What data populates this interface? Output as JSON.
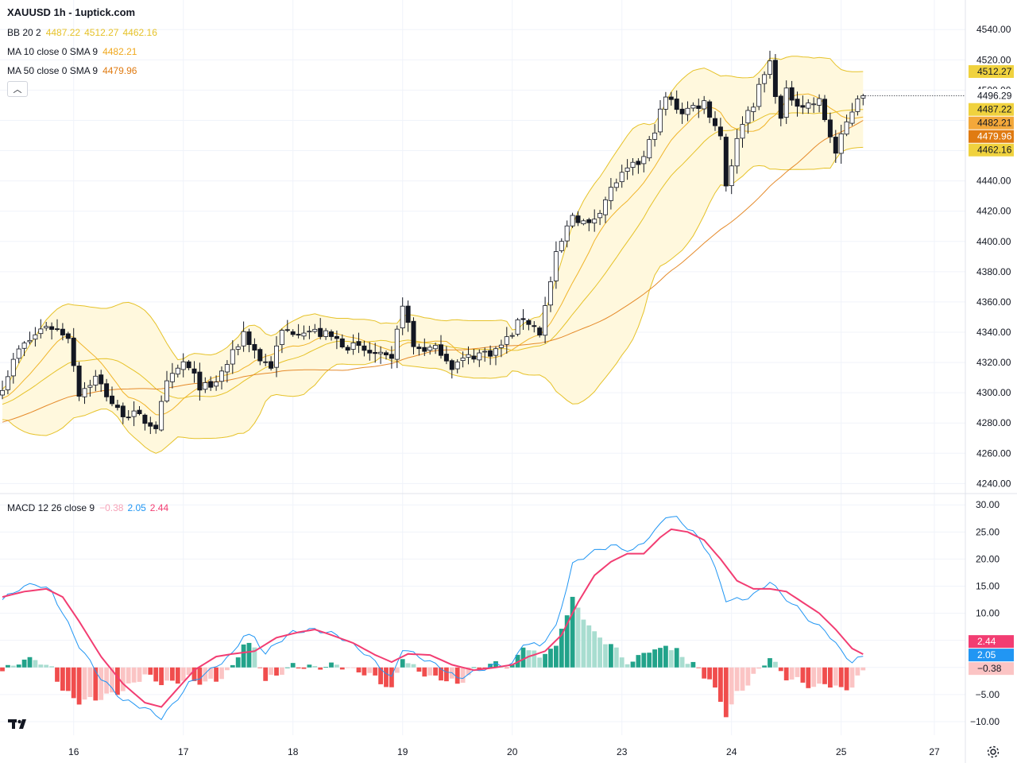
{
  "header": {
    "title": "XAUUSD 1h - 1uptick.com",
    "bb": {
      "name": "BB 20 2",
      "basis": "4487.22",
      "upper": "4512.27",
      "lower": "4462.16"
    },
    "ma10": {
      "name": "MA 10 close 0 SMA 9",
      "value": "4482.21"
    },
    "ma50": {
      "name": "MA 50 close 0 SMA 9",
      "value": "4479.96"
    },
    "macd": {
      "name": "MACD 12 26 close 9",
      "hist": "−0.38",
      "macd": "2.05",
      "signal": "2.44"
    }
  },
  "colors": {
    "up": "#ffffff",
    "down": "#131722",
    "wick": "#131722",
    "bb_band": "#e6c229",
    "bb_fill": "#fff8dd",
    "ma10": "#f0b429",
    "ma50": "#e58a2a",
    "macd_line": "#2196f3",
    "signal_line": "#f23d72",
    "hist_up_strong": "#22a38a",
    "hist_up_weak": "#a8ddd0",
    "hist_down_strong": "#f04d4d",
    "hist_down_weak": "#fbc4c4",
    "grid": "#f0f3fa",
    "axis_text": "#131722"
  },
  "chart_data": [
    {
      "type": "candlestick",
      "title": "XAUUSD 1h - 1uptick.com",
      "ylim": [
        4236,
        4548
      ],
      "y_ticks": [
        4240,
        4260,
        4280,
        4300,
        4320,
        4340,
        4360,
        4380,
        4400,
        4420,
        4440,
        4460,
        4480,
        4500,
        4520,
        4540
      ],
      "x_ticks": [
        "16",
        "17",
        "18",
        "19",
        "20",
        "23",
        "24",
        "25",
        "27"
      ],
      "x_tick_bars": [
        13,
        33,
        53,
        73,
        93,
        113,
        133,
        153,
        170
      ],
      "ohlc_anchors": [
        [
          0,
          4305
        ],
        [
          3,
          4328
        ],
        [
          8,
          4345
        ],
        [
          12,
          4338
        ],
        [
          14,
          4300
        ],
        [
          17,
          4310
        ],
        [
          21,
          4288
        ],
        [
          24,
          4285
        ],
        [
          28,
          4278
        ],
        [
          30,
          4305
        ],
        [
          33,
          4320
        ],
        [
          36,
          4305
        ],
        [
          38,
          4302
        ],
        [
          42,
          4325
        ],
        [
          44,
          4340
        ],
        [
          47,
          4322
        ],
        [
          49,
          4318
        ],
        [
          51,
          4340
        ],
        [
          55,
          4342
        ],
        [
          59,
          4338
        ],
        [
          64,
          4330
        ],
        [
          68,
          4325
        ],
        [
          71,
          4320
        ],
        [
          73,
          4360
        ],
        [
          75,
          4330
        ],
        [
          80,
          4328
        ],
        [
          82,
          4318
        ],
        [
          86,
          4325
        ],
        [
          90,
          4328
        ],
        [
          92,
          4335
        ],
        [
          95,
          4350
        ],
        [
          98,
          4340
        ],
        [
          101,
          4390
        ],
        [
          104,
          4418
        ],
        [
          107,
          4410
        ],
        [
          112,
          4440
        ],
        [
          117,
          4455
        ],
        [
          121,
          4495
        ],
        [
          124,
          4486
        ],
        [
          128,
          4492
        ],
        [
          131,
          4470
        ],
        [
          132,
          4438
        ],
        [
          135,
          4480
        ],
        [
          137,
          4492
        ],
        [
          139,
          4510
        ],
        [
          140,
          4518
        ],
        [
          142,
          4480
        ],
        [
          143,
          4498
        ],
        [
          146,
          4490
        ],
        [
          149,
          4492
        ],
        [
          151,
          4470
        ],
        [
          152,
          4458
        ],
        [
          154,
          4478
        ],
        [
          156,
          4496
        ]
      ],
      "bollinger": {
        "period": 20,
        "mult": 2,
        "upper": 4512.27,
        "basis": 4487.22,
        "lower": 4462.16
      },
      "ma10": 4482.21,
      "ma50": 4479.96,
      "price_labels": [
        {
          "value": 4512.27,
          "text": "4512.27",
          "color": "#f0d23e"
        },
        {
          "value": 4496.29,
          "text": "4496.29",
          "color": "#ffffff"
        },
        {
          "value": 4487.22,
          "text": "4487.22",
          "color": "#f0d23e"
        },
        {
          "value": 4482.21,
          "text": "4482.21",
          "color": "#f3a83a"
        },
        {
          "value": 4479.96,
          "text": "4479.96",
          "color": "#e07b12"
        },
        {
          "value": 4462.16,
          "text": "4462.16",
          "color": "#f0d23e"
        }
      ]
    },
    {
      "type": "macd",
      "title": "MACD 12 26 close 9",
      "ylim": [
        -12.5,
        31.5
      ],
      "y_ticks": [
        -10,
        -5,
        0,
        5,
        10,
        15,
        20,
        25,
        30
      ],
      "y_tick_labels": [
        "−10.00",
        "−5.00",
        "0.00",
        "5.00",
        "10.00",
        "15.00",
        "20.00",
        "25.00",
        "30.00"
      ],
      "last": {
        "macd": 2.05,
        "signal": 2.44,
        "hist": -0.38
      },
      "macd_anchors": [
        [
          0,
          12.5
        ],
        [
          3,
          14.5
        ],
        [
          6,
          15.5
        ],
        [
          9,
          14
        ],
        [
          12,
          8
        ],
        [
          14,
          4
        ],
        [
          18,
          -2
        ],
        [
          22,
          -6
        ],
        [
          26,
          -7.5
        ],
        [
          29,
          -9.3
        ],
        [
          31,
          -7
        ],
        [
          34,
          -3
        ],
        [
          38,
          -0.5
        ],
        [
          42,
          2.5
        ],
        [
          44,
          6
        ],
        [
          46,
          5.5
        ],
        [
          48,
          2.5
        ],
        [
          50,
          4.5
        ],
        [
          53,
          6.5
        ],
        [
          57,
          7
        ],
        [
          61,
          6
        ],
        [
          65,
          3.5
        ],
        [
          68,
          1
        ],
        [
          71,
          -2
        ],
        [
          73,
          3.5
        ],
        [
          76,
          2
        ],
        [
          80,
          0
        ],
        [
          83,
          -2
        ],
        [
          87,
          -0.5
        ],
        [
          90,
          0.5
        ],
        [
          93,
          0.5
        ],
        [
          95,
          4.5
        ],
        [
          98,
          4
        ],
        [
          101,
          7.5
        ],
        [
          104,
          19
        ],
        [
          107,
          21
        ],
        [
          111,
          22.5
        ],
        [
          115,
          21.5
        ],
        [
          119,
          25
        ],
        [
          121,
          28
        ],
        [
          123,
          27.5
        ],
        [
          126,
          25
        ],
        [
          129,
          21
        ],
        [
          132,
          12.5
        ],
        [
          135,
          12.5
        ],
        [
          138,
          14
        ],
        [
          140,
          16
        ],
        [
          142,
          13.5
        ],
        [
          145,
          11
        ],
        [
          148,
          8
        ],
        [
          150,
          7
        ],
        [
          153,
          3
        ],
        [
          155,
          1
        ],
        [
          157,
          2.05
        ]
      ],
      "signal_anchors": [
        [
          0,
          13
        ],
        [
          4,
          14
        ],
        [
          8,
          14.5
        ],
        [
          11,
          13
        ],
        [
          14,
          8.5
        ],
        [
          18,
          2
        ],
        [
          22,
          -3
        ],
        [
          26,
          -6.5
        ],
        [
          29,
          -7.3
        ],
        [
          31,
          -5
        ],
        [
          35,
          -0.5
        ],
        [
          39,
          2
        ],
        [
          42,
          2.5
        ],
        [
          46,
          3
        ],
        [
          50,
          5.5
        ],
        [
          54,
          6.5
        ],
        [
          57,
          7
        ],
        [
          60,
          6
        ],
        [
          64,
          4.5
        ],
        [
          68,
          2.3
        ],
        [
          71,
          1
        ],
        [
          74,
          2.5
        ],
        [
          78,
          2.3
        ],
        [
          82,
          0.5
        ],
        [
          86,
          -0.5
        ],
        [
          90,
          0
        ],
        [
          93,
          0.5
        ],
        [
          96,
          2
        ],
        [
          99,
          3
        ],
        [
          102,
          6
        ],
        [
          105,
          12
        ],
        [
          108,
          17
        ],
        [
          111,
          19.5
        ],
        [
          114,
          21
        ],
        [
          117,
          21
        ],
        [
          120,
          24
        ],
        [
          122,
          25.5
        ],
        [
          125,
          25
        ],
        [
          128,
          23.5
        ],
        [
          131,
          20
        ],
        [
          134,
          16
        ],
        [
          137,
          14.5
        ],
        [
          140,
          14.5
        ],
        [
          143,
          14
        ],
        [
          146,
          12
        ],
        [
          149,
          10
        ],
        [
          152,
          7
        ],
        [
          155,
          3.5
        ],
        [
          157,
          2.44
        ]
      ]
    }
  ]
}
